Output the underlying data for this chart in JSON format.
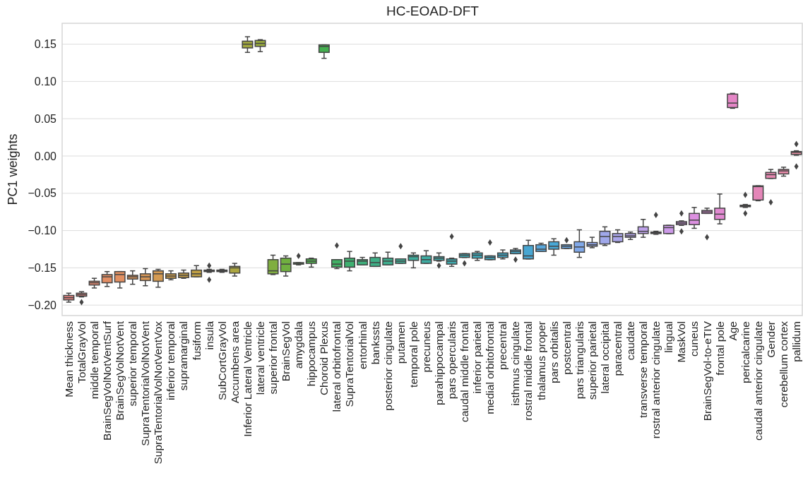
{
  "chart_data": {
    "type": "box",
    "title": "HC-EOAD-DFT",
    "ylabel": "PC1 weights",
    "grid": "y",
    "ylim": [
      -0.214,
      0.178
    ],
    "yticks": [
      {
        "value": -0.2,
        "label": "−0.20"
      },
      {
        "value": -0.15,
        "label": "−0.15"
      },
      {
        "value": -0.1,
        "label": "−0.10"
      },
      {
        "value": -0.05,
        "label": "−0.05"
      },
      {
        "value": 0,
        "label": "0.00"
      },
      {
        "value": 0.05,
        "label": "0.05"
      },
      {
        "value": 0.1,
        "label": "0.10"
      },
      {
        "value": 0.15,
        "label": "0.15"
      }
    ],
    "categories": [
      "Mean thickness",
      "TotalGrayVol",
      "middle temporal",
      "BrainSegVolNotVentSurf",
      "BrainSegVolNotVent",
      "superior temporal",
      "SupraTentorialVolNotVent",
      "SupraTentorialVolNotVentVox",
      "inferior temporal",
      "supramarginal",
      "fusiform",
      "insula",
      "SubCortGrayVol",
      "Accumbens area",
      "Inferior Lateral Ventricle",
      "lateral ventricle",
      "superior frontal",
      "BrainSegVol",
      "amygdala",
      "hippocampus",
      "Choroid Plexus",
      "lateral orbitofrontal",
      "SupraTentorialVol",
      "entorhinal",
      "bankssts",
      "posterior cingulate",
      "putamen",
      "temporal pole",
      "precuneus",
      "parahippocampal",
      "pars opercularis",
      "caudal middle frontal",
      "inferior parietal",
      "medial orbitofrontal",
      "precentral",
      "isthmus cingulate",
      "rostral middle frontal",
      "thalamus proper",
      "pars orbitalis",
      "postcentral",
      "pars triangularis",
      "superior parietal",
      "lateral occipital",
      "paracentral",
      "caudate",
      "transverse temporal",
      "rostral anterior cingulate",
      "lingual",
      "MaskVol",
      "cuneus",
      "BrainSegVol-to-eTIV",
      "frontal pole",
      "Age",
      "pericalcarine",
      "caudal anterior cingulate",
      "Gender",
      "cerebellum cortex",
      "pallidum"
    ],
    "colors": [
      "#e2807e",
      "#e48782",
      "#e48a72",
      "#e28e64",
      "#e29062",
      "#d8945a",
      "#d69656",
      "#d49a52",
      "#cc9c4a",
      "#c69e46",
      "#c0a044",
      "#b8a240",
      "#b2a440",
      "#aca640",
      "#a2a83e",
      "#98aa3e",
      "#80ae40",
      "#70b040",
      "#5cb245",
      "#50b24c",
      "#44b050",
      "#40b064",
      "#3eb070",
      "#3eb07c",
      "#3eaf86",
      "#3eae8e",
      "#3eae96",
      "#3eac9c",
      "#3eaca2",
      "#3eaaa8",
      "#3eaaae",
      "#3ea8b2",
      "#3ea8b8",
      "#3ea6be",
      "#40a6c4",
      "#42a6ca",
      "#48a6d2",
      "#58a6da",
      "#48a8d6",
      "#6aa8e4",
      "#80a8e8",
      "#92a8ea",
      "#a0a8ea",
      "#aaa6ea",
      "#b4a4ea",
      "#bea2ea",
      "#c69eea",
      "#cc9ae8",
      "#d496e6",
      "#dc90e0",
      "#de8cdc",
      "#e28ad2",
      "#e486c6",
      "#e486c0",
      "#e486b8",
      "#e688b0",
      "#e68aa8",
      "#e68ca2"
    ],
    "boxes": [
      {
        "low": -0.196,
        "q1": -0.193,
        "median": -0.19,
        "q3": -0.187,
        "high": -0.184
      },
      {
        "low": -0.189,
        "q1": -0.188,
        "median": -0.186,
        "q3": -0.184,
        "high": -0.182,
        "outliers": [
          -0.196
        ]
      },
      {
        "low": -0.177,
        "q1": -0.173,
        "median": -0.17,
        "q3": -0.168,
        "high": -0.164
      },
      {
        "low": -0.175,
        "q1": -0.17,
        "median": -0.162,
        "q3": -0.159,
        "high": -0.155
      },
      {
        "low": -0.177,
        "q1": -0.169,
        "median": -0.159,
        "q3": -0.155,
        "high": -0.155
      },
      {
        "low": -0.172,
        "q1": -0.165,
        "median": -0.162,
        "q3": -0.16,
        "high": -0.154
      },
      {
        "low": -0.174,
        "q1": -0.167,
        "median": -0.162,
        "q3": -0.158,
        "high": -0.151
      },
      {
        "low": -0.176,
        "q1": -0.168,
        "median": -0.158,
        "q3": -0.154,
        "high": -0.152
      },
      {
        "low": -0.166,
        "q1": -0.164,
        "median": -0.161,
        "q3": -0.158,
        "high": -0.154
      },
      {
        "low": -0.164,
        "q1": -0.163,
        "median": -0.16,
        "q3": -0.157,
        "high": -0.153
      },
      {
        "low": -0.162,
        "q1": -0.162,
        "median": -0.158,
        "q3": -0.153,
        "high": -0.147
      },
      {
        "low": -0.156,
        "q1": -0.155,
        "median": -0.154,
        "q3": -0.153,
        "high": -0.152,
        "outliers": [
          -0.147,
          -0.166
        ]
      },
      {
        "low": -0.156,
        "q1": -0.155,
        "median": -0.154,
        "q3": -0.153,
        "high": -0.152
      },
      {
        "low": -0.161,
        "q1": -0.157,
        "median": -0.15,
        "q3": -0.148,
        "high": -0.144
      },
      {
        "low": 0.139,
        "q1": 0.145,
        "median": 0.15,
        "q3": 0.154,
        "high": 0.16
      },
      {
        "low": 0.14,
        "q1": 0.147,
        "median": 0.151,
        "q3": 0.155,
        "high": 0.156
      },
      {
        "low": -0.159,
        "q1": -0.158,
        "median": -0.154,
        "q3": -0.139,
        "high": -0.133
      },
      {
        "low": -0.161,
        "q1": -0.155,
        "median": -0.145,
        "q3": -0.137,
        "high": -0.134
      },
      {
        "low": -0.146,
        "q1": -0.145,
        "median": -0.144,
        "q3": -0.143,
        "high": -0.143,
        "outliers": [
          -0.134
        ]
      },
      {
        "low": -0.149,
        "q1": -0.144,
        "median": -0.141,
        "q3": -0.138,
        "high": -0.137
      },
      {
        "low": 0.131,
        "q1": 0.139,
        "median": 0.147,
        "q3": 0.149,
        "high": 0.149
      },
      {
        "low": -0.151,
        "q1": -0.149,
        "median": -0.145,
        "q3": -0.139,
        "high": -0.139,
        "outliers": [
          -0.12
        ]
      },
      {
        "low": -0.154,
        "q1": -0.149,
        "median": -0.141,
        "q3": -0.137,
        "high": -0.128
      },
      {
        "low": -0.146,
        "q1": -0.146,
        "median": -0.141,
        "q3": -0.139,
        "high": -0.136
      },
      {
        "low": -0.148,
        "q1": -0.148,
        "median": -0.143,
        "q3": -0.136,
        "high": -0.13
      },
      {
        "low": -0.146,
        "q1": -0.146,
        "median": -0.141,
        "q3": -0.137,
        "high": -0.129
      },
      {
        "low": -0.144,
        "q1": -0.144,
        "median": -0.141,
        "q3": -0.138,
        "high": -0.138,
        "outliers": [
          -0.121
        ]
      },
      {
        "low": -0.15,
        "q1": -0.14,
        "median": -0.135,
        "q3": -0.133,
        "high": -0.13
      },
      {
        "low": -0.144,
        "q1": -0.144,
        "median": -0.139,
        "q3": -0.134,
        "high": -0.127
      },
      {
        "low": -0.141,
        "q1": -0.14,
        "median": -0.137,
        "q3": -0.135,
        "high": -0.13,
        "outliers": [
          -0.147
        ]
      },
      {
        "low": -0.148,
        "q1": -0.145,
        "median": -0.141,
        "q3": -0.138,
        "high": -0.137,
        "outliers": [
          -0.108
        ]
      },
      {
        "low": -0.136,
        "q1": -0.136,
        "median": -0.133,
        "q3": -0.131,
        "high": -0.131,
        "outliers": [
          -0.144
        ]
      },
      {
        "low": -0.14,
        "q1": -0.137,
        "median": -0.133,
        "q3": -0.13,
        "high": -0.128
      },
      {
        "low": -0.139,
        "q1": -0.139,
        "median": -0.136,
        "q3": -0.134,
        "high": -0.134,
        "outliers": [
          -0.116
        ]
      },
      {
        "low": -0.138,
        "q1": -0.136,
        "median": -0.133,
        "q3": -0.13,
        "high": -0.126
      },
      {
        "low": -0.131,
        "q1": -0.131,
        "median": -0.128,
        "q3": -0.126,
        "high": -0.124,
        "outliers": [
          -0.139
        ]
      },
      {
        "low": -0.138,
        "q1": -0.138,
        "median": -0.134,
        "q3": -0.12,
        "high": -0.113
      },
      {
        "low": -0.128,
        "q1": -0.128,
        "median": -0.125,
        "q3": -0.119,
        "high": -0.117
      },
      {
        "low": -0.133,
        "q1": -0.125,
        "median": -0.121,
        "q3": -0.115,
        "high": -0.111
      },
      {
        "low": -0.124,
        "q1": -0.124,
        "median": -0.121,
        "q3": -0.119,
        "high": -0.119,
        "outliers": [
          -0.113
        ]
      },
      {
        "low": -0.136,
        "q1": -0.129,
        "median": -0.122,
        "q3": -0.115,
        "high": -0.099
      },
      {
        "low": -0.123,
        "q1": -0.121,
        "median": -0.119,
        "q3": -0.116,
        "high": -0.109
      },
      {
        "low": -0.12,
        "q1": -0.118,
        "median": -0.108,
        "q3": -0.101,
        "high": -0.095
      },
      {
        "low": -0.116,
        "q1": -0.115,
        "median": -0.108,
        "q3": -0.104,
        "high": -0.099
      },
      {
        "low": -0.112,
        "q1": -0.109,
        "median": -0.107,
        "q3": -0.104,
        "high": -0.102
      },
      {
        "low": -0.109,
        "q1": -0.104,
        "median": -0.101,
        "q3": -0.095,
        "high": -0.085
      },
      {
        "low": -0.105,
        "q1": -0.104,
        "median": -0.103,
        "q3": -0.102,
        "high": -0.101,
        "outliers": [
          -0.079
        ]
      },
      {
        "low": -0.104,
        "q1": -0.104,
        "median": -0.096,
        "q3": -0.093,
        "high": -0.093
      },
      {
        "low": -0.093,
        "q1": -0.092,
        "median": -0.09,
        "q3": -0.088,
        "high": -0.087,
        "outliers": [
          -0.077,
          -0.101
        ]
      },
      {
        "low": -0.097,
        "q1": -0.092,
        "median": -0.086,
        "q3": -0.077,
        "high": -0.069
      },
      {
        "low": -0.077,
        "q1": -0.077,
        "median": -0.075,
        "q3": -0.073,
        "high": -0.07,
        "outliers": [
          -0.109
        ]
      },
      {
        "low": -0.091,
        "q1": -0.085,
        "median": -0.078,
        "q3": -0.07,
        "high": -0.051
      },
      {
        "low": 0.064,
        "q1": 0.065,
        "median": 0.071,
        "q3": 0.083,
        "high": 0.084
      },
      {
        "low": -0.069,
        "q1": -0.068,
        "median": -0.067,
        "q3": -0.066,
        "high": -0.065,
        "outliers": [
          -0.052,
          -0.077
        ]
      },
      {
        "low": -0.06,
        "q1": -0.059,
        "median": -0.041,
        "q3": -0.04,
        "high": -0.04
      },
      {
        "low": -0.03,
        "q1": -0.03,
        "median": -0.025,
        "q3": -0.022,
        "high": -0.018,
        "outliers": [
          -0.062
        ]
      },
      {
        "low": -0.027,
        "q1": -0.024,
        "median": -0.02,
        "q3": -0.018,
        "high": -0.015
      },
      {
        "low": 0.001,
        "q1": 0.002,
        "median": 0.005,
        "q3": 0.006,
        "high": 0.007,
        "outliers": [
          0.016,
          -0.014
        ]
      }
    ]
  }
}
